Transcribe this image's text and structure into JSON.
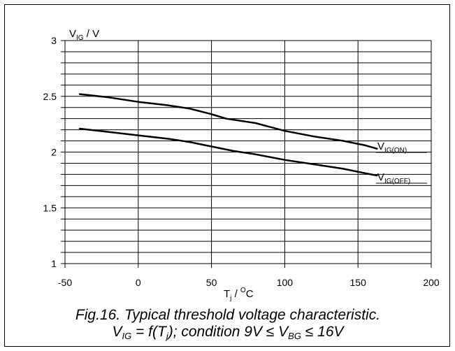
{
  "chart_data": {
    "type": "line",
    "ylabel": {
      "main": "V",
      "sub": "IG",
      "unit": " / V"
    },
    "xlabel": {
      "main": "T",
      "sub": "j",
      "mid": " / ",
      "sup": "O",
      "unit": "C"
    },
    "xlim": [
      -50,
      200
    ],
    "ylim": [
      1,
      3
    ],
    "x_ticks": [
      -50,
      0,
      50,
      100,
      150,
      200
    ],
    "x_tick_labels": [
      "-50",
      "0",
      "50",
      "100",
      "150",
      "200"
    ],
    "y_ticks": [
      1,
      1.5,
      2,
      2.5,
      3
    ],
    "y_tick_labels": [
      "1",
      "1.5",
      "2",
      "2.5",
      "3"
    ],
    "grid": {
      "vertical_step": 50,
      "horizontal_step": 0.1
    },
    "series": [
      {
        "name": "V_IG(ON)",
        "label_main": "V",
        "label_sub": "IG(ON)",
        "color": "#000000",
        "x": [
          -40,
          -20,
          0,
          20,
          35,
          50,
          60,
          80,
          100,
          120,
          140,
          155,
          163
        ],
        "y": [
          2.52,
          2.49,
          2.45,
          2.42,
          2.39,
          2.34,
          2.3,
          2.26,
          2.19,
          2.14,
          2.1,
          2.06,
          2.03
        ]
      },
      {
        "name": "V_IG(OFF)",
        "label_main": "V",
        "label_sub": "IG(OFF)",
        "color": "#000000",
        "x": [
          -40,
          -20,
          0,
          20,
          35,
          50,
          65,
          80,
          100,
          120,
          140,
          155,
          163
        ],
        "y": [
          2.21,
          2.18,
          2.15,
          2.12,
          2.09,
          2.05,
          2.01,
          1.98,
          1.93,
          1.89,
          1.85,
          1.81,
          1.79
        ]
      }
    ]
  },
  "caption": {
    "line1": "Fig.16.    Typical threshold voltage characteristic.",
    "line2_a": "V",
    "line2_a_sub": "IG",
    "line2_b": " = f(T",
    "line2_b_sub": "j",
    "line2_c": "); condition 9V ≤ V",
    "line2_c_sub": "BG",
    "line2_d": " ≤ 16V"
  }
}
